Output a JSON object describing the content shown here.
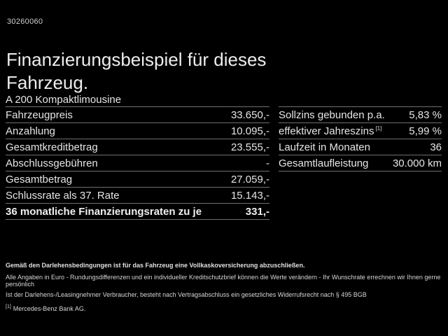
{
  "document_id": "30260060",
  "title": "Finanzierungsbeispiel für dieses Fahrzeug.",
  "vehicle": {
    "model": "A 200 Kompaktlimousine"
  },
  "finance_table": {
    "rows": [
      {
        "label": "Fahrzeugpreis",
        "value": "33.650,-"
      },
      {
        "label": "Anzahlung",
        "value": "10.095,-"
      },
      {
        "label": "Gesamtkreditbetrag",
        "value": "23.555,-"
      },
      {
        "label": "Abschlussgebühren",
        "value": "-"
      },
      {
        "label": "Gesamtbetrag",
        "value": "27.059,-"
      },
      {
        "label": "Schlussrate als 37. Rate",
        "value": "15.143,-"
      }
    ],
    "total_row": {
      "label": "36 monatliche Finanzierungsraten zu je",
      "value": "331,-"
    }
  },
  "conditions_table": {
    "rows": [
      {
        "label": "Sollzins gebunden p.a.",
        "footnote": "",
        "value": "5,83 %"
      },
      {
        "label": "effektiver Jahreszins",
        "footnote": "[1]",
        "value": "5,99 %"
      },
      {
        "label": "Laufzeit in Monaten",
        "footnote": "",
        "value": "36"
      },
      {
        "label": "Gesamtlaufleistung",
        "footnote": "",
        "value": "30.000 km"
      }
    ]
  },
  "footer": {
    "line1": "Gemäß den Darlehensbedingungen ist für das Fahrzeug eine Vollkaskoversicherung abzuschließen.",
    "line2": "Alle Angaben in Euro - Rundungsdifferenzen und ein individueller Kreditschutzbrief können die Werte verändern - Ihr Wunschrate errechnen wir Ihnen gerne persönlich",
    "line3": "Ist der Darlehens-/Leasingnehmer Verbraucher, besteht nach Vertragsabschluss ein gesetzliches Widerrufsrecht nach § 495 BGB",
    "footnote_marker": "[1]",
    "footnote_text": "Mercedes-Benz Bank AG."
  },
  "colors": {
    "background": "#000000",
    "text": "#e6e6e6",
    "divider": "#6f6f6f"
  }
}
